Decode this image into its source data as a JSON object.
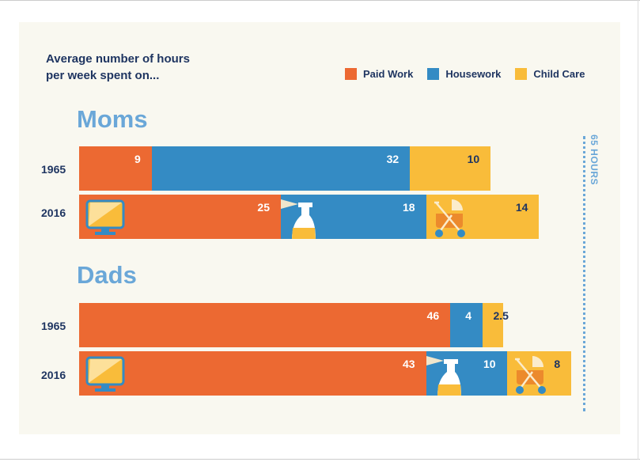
{
  "title_line1": "Average number of hours",
  "title_line2": "per week spent on...",
  "legend": [
    "Paid Work",
    "Housework",
    "Child Care"
  ],
  "colors": {
    "Paid Work": "#ec6932",
    "Housework": "#348bc4",
    "Child Care": "#f9bc3a",
    "text": "#1f3561",
    "accent": "#6aa7d8"
  },
  "reference_label": "65 HOURS",
  "chart_data": {
    "type": "bar",
    "orientation": "horizontal-stacked",
    "groups": [
      {
        "name": "Moms",
        "rows": [
          {
            "year": "1965",
            "values": [
              9,
              32,
              10
            ],
            "labels": [
              "9",
              "32",
              "10"
            ]
          },
          {
            "year": "2016",
            "values": [
              25,
              18,
              14
            ],
            "labels": [
              "25",
              "18",
              "14"
            ]
          }
        ]
      },
      {
        "name": "Dads",
        "rows": [
          {
            "year": "1965",
            "values": [
              46,
              4,
              2.5
            ],
            "labels": [
              "46",
              "4",
              "2.5"
            ]
          },
          {
            "year": "2016",
            "values": [
              43,
              10,
              8
            ],
            "labels": [
              "43",
              "10",
              "8"
            ]
          }
        ]
      }
    ],
    "series": [
      "Paid Work",
      "Housework",
      "Child Care"
    ],
    "reference_line": 65,
    "xlim": [
      0,
      65
    ]
  }
}
